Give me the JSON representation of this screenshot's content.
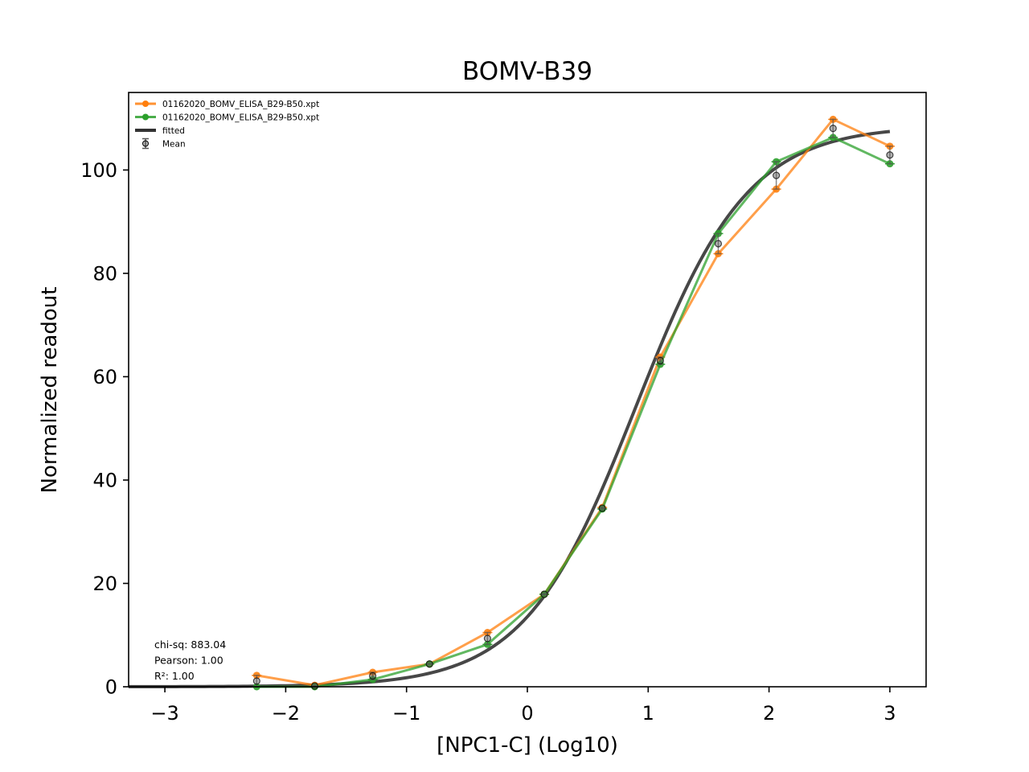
{
  "chart_data": {
    "type": "line",
    "title": "BOMV-B39",
    "xlabel": "[NPC1-C] (Log10)",
    "ylabel": "Normalized readout",
    "xlim": [
      -3.3,
      3.3
    ],
    "ylim": [
      0,
      115
    ],
    "xticks": [
      -3,
      -2,
      -1,
      0,
      1,
      2,
      3
    ],
    "xtick_labels": [
      "−3",
      "−2",
      "−1",
      "0",
      "1",
      "2",
      "3"
    ],
    "yticks": [
      0,
      20,
      40,
      60,
      80,
      100
    ],
    "ytick_labels": [
      "0",
      "20",
      "40",
      "60",
      "80",
      "100"
    ],
    "legend_position": "top-left",
    "x": [
      -2.24,
      -1.76,
      -1.28,
      -0.81,
      -0.33,
      0.14,
      0.62,
      1.1,
      1.58,
      2.06,
      2.53,
      3.0
    ],
    "series": [
      {
        "name": "01162020_BOMV_ELISA_B29-B50.xpt",
        "color": "#ff7f0e",
        "values": [
          2.2,
          0.3,
          2.8,
          4.4,
          10.5,
          17.9,
          34.7,
          63.8,
          83.8,
          96.3,
          109.8,
          104.6
        ]
      },
      {
        "name": "01162020_BOMV_ELISA_B29-B50.xpt",
        "color": "#2ca02c",
        "values": [
          0.0,
          0.0,
          1.4,
          4.4,
          8.2,
          17.9,
          34.4,
          62.4,
          87.7,
          101.6,
          106.3,
          101.2
        ]
      }
    ],
    "fitted": {
      "name": "fitted",
      "color": "#333333",
      "x_range": [
        -3.3,
        3.0
      ],
      "bottom": 0,
      "top": 108.6,
      "ec50_log10": 0.9,
      "hill_slope": 0.94
    },
    "mean": {
      "name": "Mean",
      "color": "#555555",
      "values": [
        1.1,
        0.15,
        2.1,
        4.4,
        9.35,
        17.9,
        34.55,
        63.1,
        85.75,
        98.95,
        108.05,
        102.9
      ]
    },
    "stats": [
      "chi-sq: 883.04",
      "Pearson: 1.00",
      "R²: 1.00"
    ]
  }
}
